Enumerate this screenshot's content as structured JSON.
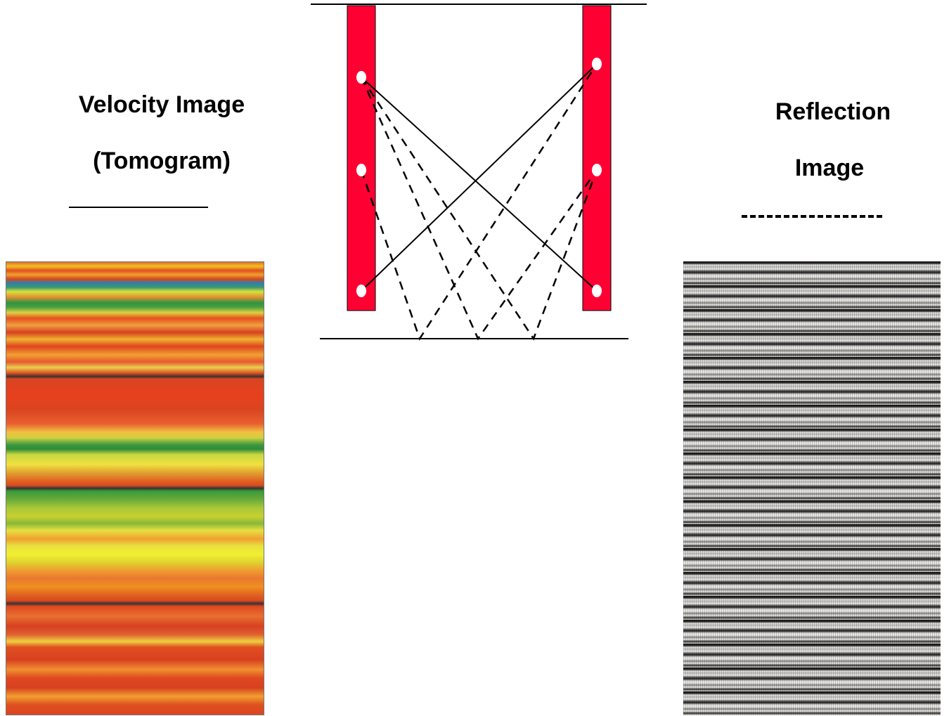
{
  "velocity": {
    "title_line1": "Velocity Image",
    "title_line2": "(Tomogram)"
  },
  "reflection": {
    "title_line1": "Reflection",
    "title_line2": "Image"
  },
  "colors": {
    "borehole": "#ff0033",
    "receiver_dot": "#ffffff",
    "ray": "#000000"
  }
}
